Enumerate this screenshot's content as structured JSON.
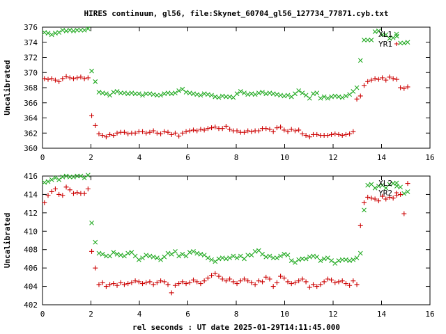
{
  "title": "HIRES continuum, gl56, file:Skynet_60704_gl56_127734_77871.cyb.txt",
  "xlabel": "rel seconds : UT date 2025-01-29T14:11:45.000",
  "colors": {
    "red_series": "#cc0000",
    "green_series": "#22aa22"
  },
  "chart_data": [
    {
      "type": "scatter",
      "ylabel": "Uncalibrated",
      "xlim": [
        0,
        16
      ],
      "ylim": [
        360,
        376
      ],
      "x_ticks": [
        "0",
        "2",
        "4",
        "6",
        "8",
        "10",
        "12",
        "14",
        "16"
      ],
      "y_ticks": [
        "360",
        "362",
        "364",
        "366",
        "368",
        "370",
        "372",
        "374",
        "376"
      ],
      "grid": false,
      "legend": "top-right",
      "series": [
        {
          "name": "XL1",
          "marker": "x",
          "color": "#22aa22",
          "x": [
            0.08,
            0.23,
            0.38,
            0.53,
            0.68,
            0.83,
            0.98,
            1.13,
            1.28,
            1.43,
            1.58,
            1.73,
            1.88,
            2.03,
            2.18,
            2.33,
            2.48,
            2.63,
            2.78,
            2.93,
            3.08,
            3.23,
            3.38,
            3.53,
            3.68,
            3.83,
            3.98,
            4.13,
            4.28,
            4.43,
            4.58,
            4.73,
            4.88,
            5.03,
            5.18,
            5.33,
            5.48,
            5.63,
            5.78,
            5.93,
            6.08,
            6.23,
            6.38,
            6.53,
            6.68,
            6.83,
            6.98,
            7.13,
            7.28,
            7.43,
            7.58,
            7.73,
            7.88,
            8.03,
            8.18,
            8.33,
            8.48,
            8.63,
            8.78,
            8.93,
            9.08,
            9.23,
            9.38,
            9.53,
            9.68,
            9.83,
            9.98,
            10.13,
            10.28,
            10.43,
            10.58,
            10.73,
            10.88,
            11.03,
            11.18,
            11.33,
            11.48,
            11.63,
            11.78,
            11.93,
            12.08,
            12.23,
            12.38,
            12.53,
            12.68,
            12.83,
            12.98,
            13.13,
            13.28,
            13.43,
            13.58,
            13.73,
            13.88,
            14.03,
            14.18,
            14.33,
            14.48,
            14.63,
            14.78,
            14.93,
            15.08
          ],
          "values": [
            375.3,
            375.2,
            375.0,
            375.2,
            375.3,
            375.6,
            375.5,
            375.6,
            375.5,
            375.6,
            375.6,
            375.6,
            375.8,
            370.2,
            368.8,
            367.4,
            367.3,
            367.2,
            367.0,
            367.4,
            367.5,
            367.3,
            367.3,
            367.2,
            367.3,
            367.2,
            367.2,
            367.0,
            367.2,
            367.2,
            367.1,
            367.0,
            367.0,
            367.2,
            367.3,
            367.2,
            367.3,
            367.6,
            367.8,
            367.4,
            367.3,
            367.2,
            367.1,
            367.0,
            367.2,
            367.1,
            367.0,
            366.8,
            366.7,
            366.9,
            366.8,
            366.8,
            366.7,
            367.2,
            367.5,
            367.3,
            367.1,
            367.2,
            367.1,
            367.3,
            367.4,
            367.2,
            367.3,
            367.2,
            367.1,
            367.0,
            366.9,
            367.0,
            366.8,
            367.2,
            367.6,
            367.3,
            367.0,
            366.6,
            367.2,
            367.3,
            366.6,
            366.8,
            366.6,
            366.8,
            366.9,
            366.8,
            366.7,
            366.9,
            367.1,
            367.5,
            368.0,
            371.6,
            374.3,
            374.3,
            374.3,
            375.4,
            375.5,
            375.0,
            375.0,
            374.5,
            374.6,
            374.8,
            373.9,
            373.9,
            374.0
          ]
        },
        {
          "name": "YR1",
          "marker": "+",
          "color": "#cc0000",
          "x": [
            0.08,
            0.23,
            0.38,
            0.53,
            0.68,
            0.83,
            0.98,
            1.13,
            1.28,
            1.43,
            1.58,
            1.73,
            1.88,
            2.03,
            2.18,
            2.33,
            2.48,
            2.63,
            2.78,
            2.93,
            3.08,
            3.23,
            3.38,
            3.53,
            3.68,
            3.83,
            3.98,
            4.13,
            4.28,
            4.43,
            4.58,
            4.73,
            4.88,
            5.03,
            5.18,
            5.33,
            5.48,
            5.63,
            5.78,
            5.93,
            6.08,
            6.23,
            6.38,
            6.53,
            6.68,
            6.83,
            6.98,
            7.13,
            7.28,
            7.43,
            7.58,
            7.73,
            7.88,
            8.03,
            8.18,
            8.33,
            8.48,
            8.63,
            8.78,
            8.93,
            9.08,
            9.23,
            9.38,
            9.53,
            9.68,
            9.83,
            9.98,
            10.13,
            10.28,
            10.43,
            10.58,
            10.73,
            10.88,
            11.03,
            11.18,
            11.33,
            11.48,
            11.63,
            11.78,
            11.93,
            12.08,
            12.23,
            12.38,
            12.53,
            12.68,
            12.83,
            12.98,
            13.13,
            13.28,
            13.43,
            13.58,
            13.73,
            13.88,
            14.03,
            14.18,
            14.33,
            14.48,
            14.63,
            14.78,
            14.93,
            15.08
          ],
          "values": [
            369.2,
            369.1,
            369.2,
            369.0,
            368.8,
            369.2,
            369.5,
            369.3,
            369.2,
            369.3,
            369.4,
            369.2,
            369.3,
            364.3,
            363.0,
            361.9,
            361.7,
            361.5,
            361.8,
            361.7,
            362.0,
            362.1,
            362.1,
            361.9,
            362.0,
            362.0,
            362.2,
            362.2,
            362.0,
            362.1,
            362.3,
            362.0,
            361.9,
            362.2,
            362.1,
            361.8,
            362.0,
            361.6,
            362.0,
            362.2,
            362.3,
            362.4,
            362.3,
            362.5,
            362.4,
            362.6,
            362.7,
            362.8,
            362.6,
            362.6,
            362.9,
            362.5,
            362.3,
            362.3,
            362.1,
            362.1,
            362.3,
            362.2,
            362.3,
            362.3,
            362.6,
            362.6,
            362.5,
            362.2,
            362.7,
            362.8,
            362.4,
            362.2,
            362.5,
            362.3,
            362.4,
            361.9,
            361.7,
            361.5,
            361.8,
            361.8,
            361.7,
            361.7,
            361.7,
            361.8,
            361.9,
            361.8,
            361.7,
            361.8,
            361.9,
            362.2,
            366.5,
            366.9,
            368.3,
            368.8,
            369.0,
            369.2,
            369.1,
            369.3,
            369.0,
            369.4,
            369.2,
            369.1,
            368.0,
            367.9,
            368.1
          ]
        }
      ]
    },
    {
      "type": "scatter",
      "ylabel": "Uncalibrated",
      "xlim": [
        0,
        16
      ],
      "ylim": [
        402,
        416
      ],
      "x_ticks": [
        "0",
        "2",
        "4",
        "6",
        "8",
        "10",
        "12",
        "14",
        "16"
      ],
      "y_ticks": [
        "402",
        "404",
        "406",
        "408",
        "410",
        "412",
        "414",
        "416"
      ],
      "grid": false,
      "legend": "top-right",
      "series": [
        {
          "name": "XL2",
          "marker": "x",
          "color": "#22aa22",
          "x": [
            0.08,
            0.23,
            0.38,
            0.53,
            0.68,
            0.83,
            0.98,
            1.13,
            1.28,
            1.43,
            1.58,
            1.73,
            1.88,
            2.03,
            2.18,
            2.33,
            2.48,
            2.63,
            2.78,
            2.93,
            3.08,
            3.23,
            3.38,
            3.53,
            3.68,
            3.83,
            3.98,
            4.13,
            4.28,
            4.43,
            4.58,
            4.73,
            4.88,
            5.03,
            5.18,
            5.33,
            5.48,
            5.63,
            5.78,
            5.93,
            6.08,
            6.23,
            6.38,
            6.53,
            6.68,
            6.83,
            6.98,
            7.13,
            7.28,
            7.43,
            7.58,
            7.73,
            7.88,
            8.03,
            8.18,
            8.33,
            8.48,
            8.63,
            8.78,
            8.93,
            9.08,
            9.23,
            9.38,
            9.53,
            9.68,
            9.83,
            9.98,
            10.13,
            10.28,
            10.43,
            10.58,
            10.73,
            10.88,
            11.03,
            11.18,
            11.33,
            11.48,
            11.63,
            11.78,
            11.93,
            12.08,
            12.23,
            12.38,
            12.53,
            12.68,
            12.83,
            12.98,
            13.13,
            13.28,
            13.43,
            13.58,
            13.73,
            13.88,
            14.03,
            14.18,
            14.33,
            14.48,
            14.63,
            14.78,
            14.93,
            15.08
          ],
          "values": [
            415.3,
            415.4,
            415.6,
            415.8,
            415.6,
            415.9,
            416.0,
            415.9,
            415.9,
            416.0,
            416.0,
            415.8,
            416.1,
            410.9,
            408.8,
            407.6,
            407.5,
            407.3,
            407.3,
            407.7,
            407.5,
            407.4,
            407.3,
            407.6,
            407.7,
            407.3,
            406.9,
            407.1,
            407.4,
            407.3,
            407.2,
            407.1,
            406.9,
            407.2,
            407.6,
            407.5,
            407.8,
            407.3,
            407.5,
            407.3,
            407.7,
            407.8,
            407.6,
            407.5,
            407.4,
            407.1,
            406.9,
            406.7,
            407.0,
            407.1,
            407.0,
            407.1,
            407.3,
            407.1,
            407.3,
            407.0,
            407.4,
            407.4,
            407.8,
            407.9,
            407.5,
            407.2,
            407.3,
            407.1,
            407.1,
            407.3,
            407.5,
            407.4,
            406.8,
            406.6,
            406.9,
            407.0,
            407.0,
            407.2,
            407.3,
            407.2,
            406.8,
            407.0,
            407.1,
            406.8,
            406.5,
            406.8,
            406.9,
            406.9,
            406.8,
            406.9,
            407.1,
            407.6,
            412.3,
            415.0,
            415.1,
            414.7,
            414.9,
            415.0,
            414.7,
            415.1,
            415.2,
            414.9,
            414.8,
            414.1,
            414.3
          ]
        },
        {
          "name": "YR2",
          "marker": "+",
          "color": "#cc0000",
          "x": [
            0.08,
            0.23,
            0.38,
            0.53,
            0.68,
            0.83,
            0.98,
            1.13,
            1.28,
            1.43,
            1.58,
            1.73,
            1.88,
            2.03,
            2.18,
            2.33,
            2.48,
            2.63,
            2.78,
            2.93,
            3.08,
            3.23,
            3.38,
            3.53,
            3.68,
            3.83,
            3.98,
            4.13,
            4.28,
            4.43,
            4.58,
            4.73,
            4.88,
            5.03,
            5.18,
            5.33,
            5.48,
            5.63,
            5.78,
            5.93,
            6.08,
            6.23,
            6.38,
            6.53,
            6.68,
            6.83,
            6.98,
            7.13,
            7.28,
            7.43,
            7.58,
            7.73,
            7.88,
            8.03,
            8.18,
            8.33,
            8.48,
            8.63,
            8.78,
            8.93,
            9.08,
            9.23,
            9.38,
            9.53,
            9.68,
            9.83,
            9.98,
            10.13,
            10.28,
            10.43,
            10.58,
            10.73,
            10.88,
            11.03,
            11.18,
            11.33,
            11.48,
            11.63,
            11.78,
            11.93,
            12.08,
            12.23,
            12.38,
            12.53,
            12.68,
            12.83,
            12.98,
            13.13,
            13.28,
            13.43,
            13.58,
            13.73,
            13.88,
            14.03,
            14.18,
            14.33,
            14.48,
            14.63,
            14.78,
            14.93,
            15.08
          ],
          "values": [
            413.1,
            413.9,
            414.3,
            414.6,
            414.0,
            413.9,
            414.8,
            414.5,
            414.1,
            414.2,
            414.1,
            414.1,
            414.6,
            407.8,
            406.0,
            404.2,
            404.4,
            404.0,
            404.2,
            404.3,
            404.1,
            404.4,
            404.2,
            404.3,
            404.4,
            404.6,
            404.5,
            404.3,
            404.4,
            404.5,
            404.2,
            404.4,
            404.6,
            404.5,
            404.2,
            403.3,
            404.1,
            404.3,
            404.5,
            404.3,
            404.4,
            404.7,
            404.5,
            404.3,
            404.6,
            404.9,
            405.2,
            405.4,
            405.1,
            404.8,
            404.6,
            404.8,
            404.5,
            404.3,
            404.6,
            404.8,
            404.6,
            404.4,
            404.2,
            404.6,
            404.5,
            405.0,
            404.8,
            404.0,
            404.4,
            405.1,
            404.9,
            404.5,
            404.3,
            404.4,
            404.6,
            404.8,
            404.5,
            403.9,
            404.2,
            404.0,
            404.2,
            404.5,
            404.8,
            404.7,
            404.4,
            404.5,
            404.6,
            404.3,
            404.1,
            404.6,
            404.2,
            410.6,
            413.1,
            413.7,
            413.6,
            413.5,
            413.3,
            413.8,
            413.5,
            413.7,
            413.6,
            413.9,
            414.0,
            411.9,
            415.2
          ]
        }
      ]
    }
  ]
}
